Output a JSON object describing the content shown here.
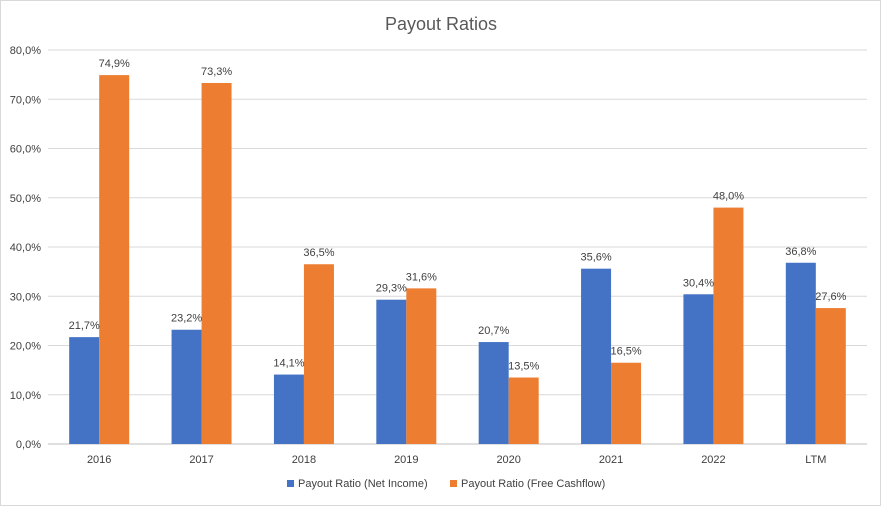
{
  "chart_data": {
    "type": "bar",
    "title": "Payout Ratios",
    "categories": [
      "2016",
      "2017",
      "2018",
      "2019",
      "2020",
      "2021",
      "2022",
      "LTM"
    ],
    "series": [
      {
        "name": "Payout Ratio (Net Income)",
        "color": "#4472c4",
        "values": [
          21.7,
          23.2,
          14.1,
          29.3,
          20.7,
          35.6,
          30.4,
          36.8
        ],
        "labels": [
          "21,7%",
          "23,2%",
          "14,1%",
          "29,3%",
          "20,7%",
          "35,6%",
          "30,4%",
          "36,8%"
        ]
      },
      {
        "name": "Payout Ratio (Free Cashflow)",
        "color": "#ed7d31",
        "values": [
          74.9,
          73.3,
          36.5,
          31.6,
          13.5,
          16.5,
          48.0,
          27.6
        ],
        "labels": [
          "74,9%",
          "73,3%",
          "36,5%",
          "31,6%",
          "13,5%",
          "16,5%",
          "48,0%",
          "27,6%"
        ]
      }
    ],
    "ylim": [
      0,
      80
    ],
    "yticks": [
      "0,0%",
      "10,0%",
      "20,0%",
      "30,0%",
      "40,0%",
      "50,0%",
      "60,0%",
      "70,0%",
      "80,0%"
    ],
    "grid": true,
    "legend_position": "bottom"
  }
}
